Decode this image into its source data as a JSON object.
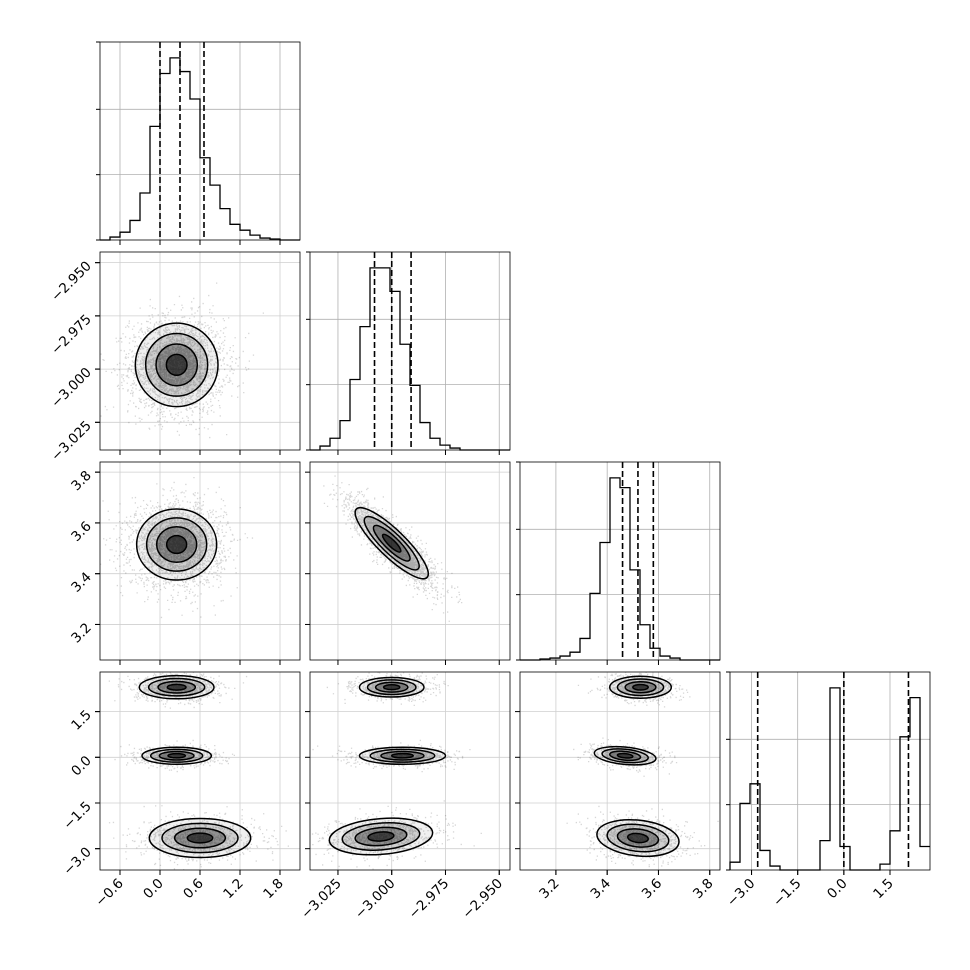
{
  "chart_data": {
    "type": "corner",
    "title": "",
    "parameters": [
      {
        "range": [
          -0.9,
          2.1
        ],
        "ticks": [
          -0.6,
          0.0,
          0.6,
          1.2,
          1.8
        ],
        "tick_labels": [
          "−0.6",
          "0.0",
          "0.6",
          "1.2",
          "1.8"
        ]
      },
      {
        "range": [
          -3.038,
          -2.945
        ],
        "ticks": [
          -3.025,
          -3.0,
          -2.975,
          -2.95
        ],
        "tick_labels": [
          "−3.025",
          "−3.000",
          "−2.975",
          "−2.950"
        ]
      },
      {
        "range": [
          3.06,
          3.84
        ],
        "ticks": [
          3.2,
          3.4,
          3.6,
          3.8
        ],
        "tick_labels": [
          "3.2",
          "3.4",
          "3.6",
          "3.8"
        ]
      },
      {
        "range": [
          -3.7,
          2.8
        ],
        "ticks": [
          -3.0,
          -1.5,
          0.0,
          1.5
        ],
        "tick_labels": [
          "−3.0",
          "−1.5",
          "0.0",
          "1.5"
        ]
      }
    ],
    "histograms": [
      {
        "param": 0,
        "bin_start": -0.9,
        "bin_width": 0.15,
        "counts": [
          0,
          1.5,
          4,
          10,
          24,
          58,
          85,
          93,
          86,
          72,
          42,
          28,
          16,
          8,
          5,
          2.5,
          1,
          0.5,
          0,
          0
        ],
        "quantiles": [
          0.0,
          0.3,
          0.66
        ]
      },
      {
        "param": 1,
        "bin_start": -3.038,
        "bin_width": 0.00465,
        "counts": [
          0,
          2,
          6,
          15,
          36,
          63,
          93,
          93,
          81,
          54,
          33,
          14,
          6,
          2.5,
          1,
          0,
          0,
          0,
          0,
          0
        ],
        "quantiles": [
          -3.008,
          -3.0,
          -2.991
        ]
      },
      {
        "param": 2,
        "bin_start": 3.06,
        "bin_width": 0.039,
        "counts": [
          0,
          0,
          0.5,
          1,
          2,
          4,
          11,
          34,
          60,
          93,
          88,
          46,
          18,
          6,
          2,
          1,
          0,
          0,
          0,
          0
        ],
        "quantiles": [
          3.46,
          3.52,
          3.58
        ]
      },
      {
        "param": 3,
        "bin_start": -3.7,
        "bin_width": 0.325,
        "counts": [
          4,
          34,
          44,
          10,
          2,
          0,
          0,
          0,
          0,
          15,
          93,
          12,
          0,
          0,
          0,
          3,
          20,
          68,
          88,
          12
        ],
        "quantiles": [
          -2.8,
          0.0,
          2.1
        ]
      }
    ],
    "pairs": [
      {
        "x": 0,
        "y": 1,
        "peaks": [
          {
            "cx": 0.25,
            "cy": -2.998,
            "sx": 0.31,
            "sy": 0.0098,
            "rho": 0.0,
            "w": 1.0
          }
        ]
      },
      {
        "x": 0,
        "y": 2,
        "peaks": [
          {
            "cx": 0.25,
            "cy": 3.515,
            "sx": 0.3,
            "sy": 0.07,
            "rho": 0.0,
            "w": 1.0
          }
        ]
      },
      {
        "x": 1,
        "y": 2,
        "peaks": [
          {
            "cx": -3.0,
            "cy": 3.52,
            "sx": 0.0085,
            "sy": 0.07,
            "rho": -0.86,
            "w": 1.0
          }
        ]
      },
      {
        "x": 0,
        "y": 3,
        "peaks": [
          {
            "cx": 0.25,
            "cy": 2.3,
            "sx": 0.28,
            "sy": 0.19,
            "rho": 0.0,
            "w": 0.35
          },
          {
            "cx": 0.25,
            "cy": 0.05,
            "sx": 0.26,
            "sy": 0.14,
            "rho": 0.0,
            "w": 0.3
          },
          {
            "cx": 0.6,
            "cy": -2.65,
            "sx": 0.38,
            "sy": 0.32,
            "rho": 0.0,
            "w": 0.35
          }
        ]
      },
      {
        "x": 1,
        "y": 3,
        "peaks": [
          {
            "cx": -3.0,
            "cy": 2.3,
            "sx": 0.0075,
            "sy": 0.16,
            "rho": 0.0,
            "w": 0.35
          },
          {
            "cx": -2.995,
            "cy": 0.05,
            "sx": 0.01,
            "sy": 0.14,
            "rho": 0.0,
            "w": 0.3
          },
          {
            "cx": -3.005,
            "cy": -2.6,
            "sx": 0.012,
            "sy": 0.3,
            "rho": 0.2,
            "w": 0.35
          }
        ]
      },
      {
        "x": 2,
        "y": 3,
        "peaks": [
          {
            "cx": 3.53,
            "cy": 2.3,
            "sx": 0.06,
            "sy": 0.18,
            "rho": 0.0,
            "w": 0.35
          },
          {
            "cx": 3.47,
            "cy": 0.05,
            "sx": 0.06,
            "sy": 0.15,
            "rho": -0.3,
            "w": 0.3
          },
          {
            "cx": 3.52,
            "cy": -2.65,
            "sx": 0.08,
            "sy": 0.3,
            "rho": -0.2,
            "w": 0.35
          }
        ]
      }
    ],
    "grid": true,
    "contour_levels_sigma": [
      0.5,
      1.0,
      1.5,
      2.0
    ]
  }
}
